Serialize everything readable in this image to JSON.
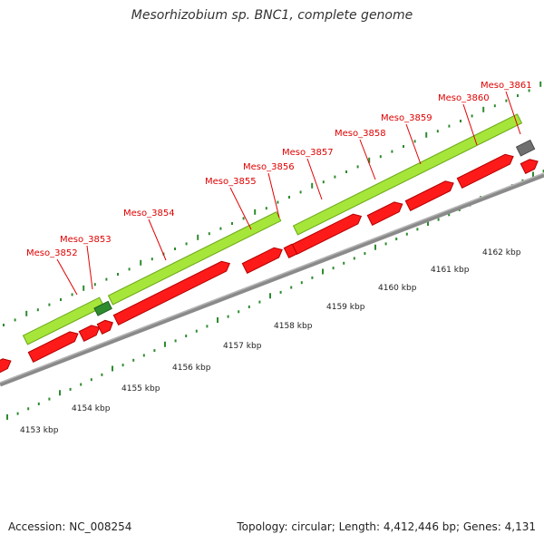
{
  "title": "Mesorhizobium sp. BNC1, complete genome",
  "footer": {
    "accession": "Accession: NC_008254",
    "topology": "Topology: circular; Length: 4,412,446 bp; Genes: 4,131"
  },
  "colors": {
    "gene_fill": "#ff1a1a",
    "gene_stroke": "#b30000",
    "cds_fill": "#a6e63a",
    "cds_stroke": "#6aa616",
    "rna_fill": "#2e8b2e",
    "other_fill": "#707070",
    "backbone": "#8a8a8a",
    "tick": "#2e8b2e",
    "gene_label": "#e00000",
    "scale_label": "#222222"
  },
  "axis_labels": [
    "4153 kbp",
    "4154 kbp",
    "4155 kbp",
    "4156 kbp",
    "4157 kbp",
    "4158 kbp",
    "4159 kbp",
    "4160 kbp",
    "4161 kbp",
    "4162 kbp"
  ],
  "gene_labels": [
    "Meso_3852",
    "Meso_3853",
    "Meso_3854",
    "Meso_3855",
    "Meso_3856",
    "Meso_3857",
    "Meso_3858",
    "Meso_3859",
    "Meso_3860",
    "Meso_3861"
  ]
}
